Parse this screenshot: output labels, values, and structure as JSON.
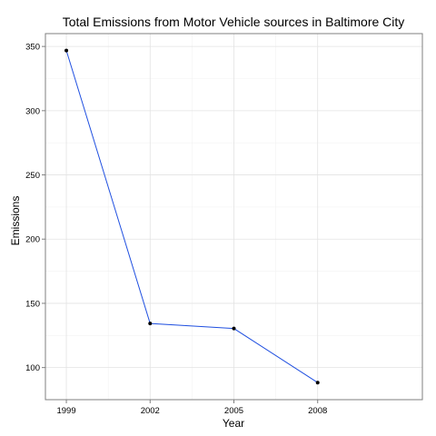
{
  "chart_data": {
    "type": "line",
    "title": "Total Emissions from Motor Vehicle sources in Baltimore City",
    "xlabel": "Year",
    "ylabel": "Emissions",
    "categories": [
      "1999",
      "2002",
      "2005",
      "2008"
    ],
    "series": [
      {
        "values": [
          346.8,
          134.3,
          130.4,
          88.3
        ]
      }
    ],
    "ylim": [
      75,
      360
    ],
    "yticks": [
      100,
      150,
      200,
      250,
      300,
      350
    ],
    "yticks_labels": [
      "100",
      "150",
      "200",
      "250",
      "300",
      "350"
    ],
    "grid": true,
    "colors": {
      "line": "#1f4fe0",
      "point": "#000000",
      "grid_major": "#e3e3e3",
      "grid_minor": "#f2f2f2",
      "frame": "#7f7f7f"
    }
  }
}
